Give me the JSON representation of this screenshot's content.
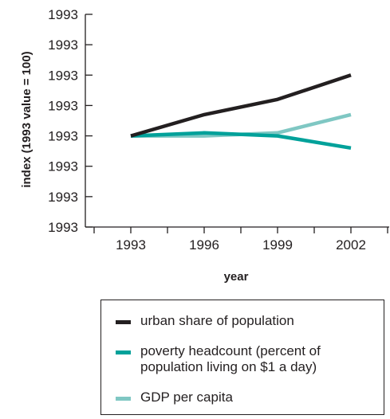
{
  "chart_data": {
    "type": "line",
    "xlabel": "year",
    "ylabel": "index (1993 value = 100)",
    "x": [
      1993,
      1996,
      1999,
      2002
    ],
    "x_ticks": [
      "1993",
      "1996",
      "1999",
      "2002"
    ],
    "y_ticks": [
      "1993",
      "1993",
      "1993",
      "1993",
      "1993",
      "1993",
      "1993",
      "1993"
    ],
    "ylim": [
      70,
      140
    ],
    "grid": false,
    "legend_position": "bottom",
    "series": [
      {
        "name": "urban share of population",
        "color": "#231f20",
        "values": [
          100,
          107,
          112,
          120
        ]
      },
      {
        "name": "poverty headcount (percent of\npopulation living on $1 a day)",
        "color": "#00a19a",
        "values": [
          100,
          101,
          100,
          96
        ]
      },
      {
        "name": "GDP per capita",
        "color": "#7fc7c3",
        "values": [
          100,
          100,
          101,
          107
        ]
      }
    ]
  }
}
